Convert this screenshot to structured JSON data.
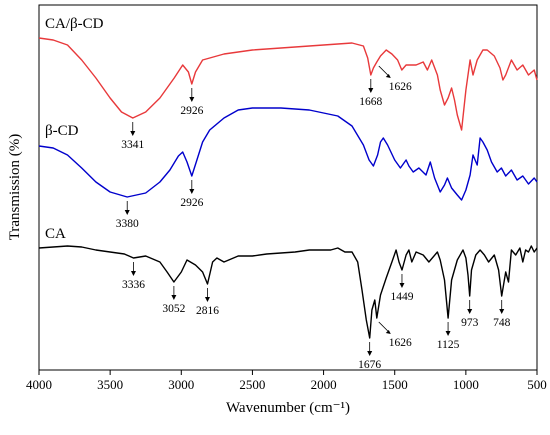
{
  "chart_data": {
    "type": "line",
    "title": "",
    "xlabel": "Wavenumber (cm⁻¹)",
    "ylabel": "Transmission (%)",
    "xlim": [
      4000,
      500
    ],
    "x_reversed": true,
    "y_ticks_shown": false,
    "xticks": [
      {
        "value": 4000,
        "label": "4000"
      },
      {
        "value": 3500,
        "label": "3500"
      },
      {
        "value": 3000,
        "label": "3000"
      },
      {
        "value": 2500,
        "label": "2500"
      },
      {
        "value": 2000,
        "label": "2000"
      },
      {
        "value": 1500,
        "label": "1500"
      },
      {
        "value": 1000,
        "label": "1000"
      },
      {
        "value": 500,
        "label": "500"
      }
    ],
    "series": [
      {
        "name": "CA/β-CD",
        "color": "#e8393b",
        "points": [
          [
            4000,
            18
          ],
          [
            3900,
            20
          ],
          [
            3800,
            25
          ],
          [
            3700,
            40
          ],
          [
            3600,
            58
          ],
          [
            3500,
            78
          ],
          [
            3420,
            92
          ],
          [
            3341,
            98
          ],
          [
            3250,
            92
          ],
          [
            3150,
            78
          ],
          [
            3050,
            58
          ],
          [
            2990,
            45
          ],
          [
            2950,
            52
          ],
          [
            2926,
            64
          ],
          [
            2900,
            52
          ],
          [
            2850,
            40
          ],
          [
            2700,
            34
          ],
          [
            2500,
            30
          ],
          [
            2300,
            28
          ],
          [
            2100,
            26
          ],
          [
            1900,
            24
          ],
          [
            1800,
            23
          ],
          [
            1720,
            26
          ],
          [
            1690,
            38
          ],
          [
            1668,
            55
          ],
          [
            1650,
            48
          ],
          [
            1626,
            42
          ],
          [
            1600,
            36
          ],
          [
            1560,
            30
          ],
          [
            1520,
            34
          ],
          [
            1480,
            40
          ],
          [
            1450,
            50
          ],
          [
            1420,
            45
          ],
          [
            1350,
            45
          ],
          [
            1300,
            42
          ],
          [
            1270,
            50
          ],
          [
            1240,
            40
          ],
          [
            1200,
            55
          ],
          [
            1180,
            70
          ],
          [
            1150,
            85
          ],
          [
            1125,
            78
          ],
          [
            1100,
            68
          ],
          [
            1080,
            80
          ],
          [
            1060,
            95
          ],
          [
            1030,
            110
          ],
          [
            1000,
            70
          ],
          [
            970,
            40
          ],
          [
            950,
            55
          ],
          [
            920,
            40
          ],
          [
            880,
            30
          ],
          [
            850,
            30
          ],
          [
            800,
            36
          ],
          [
            760,
            48
          ],
          [
            740,
            60
          ],
          [
            720,
            55
          ],
          [
            680,
            40
          ],
          [
            640,
            50
          ],
          [
            600,
            45
          ],
          [
            560,
            55
          ],
          [
            520,
            50
          ],
          [
            500,
            60
          ]
        ],
        "peaks": [
          {
            "x": 3341,
            "label": "3341"
          },
          {
            "x": 2926,
            "label": "2926"
          },
          {
            "x": 1668,
            "label": "1668"
          },
          {
            "x": 1626,
            "label": "1626"
          }
        ]
      },
      {
        "name": "β-CD",
        "color": "#0000cc",
        "points": [
          [
            4000,
            146
          ],
          [
            3900,
            148
          ],
          [
            3800,
            155
          ],
          [
            3700,
            168
          ],
          [
            3600,
            182
          ],
          [
            3500,
            192
          ],
          [
            3380,
            197
          ],
          [
            3250,
            193
          ],
          [
            3150,
            182
          ],
          [
            3080,
            170
          ],
          [
            3020,
            156
          ],
          [
            2990,
            152
          ],
          [
            2960,
            162
          ],
          [
            2926,
            176
          ],
          [
            2890,
            160
          ],
          [
            2850,
            142
          ],
          [
            2800,
            130
          ],
          [
            2700,
            118
          ],
          [
            2600,
            110
          ],
          [
            2500,
            108
          ],
          [
            2300,
            108
          ],
          [
            2100,
            110
          ],
          [
            1900,
            116
          ],
          [
            1800,
            126
          ],
          [
            1720,
            145
          ],
          [
            1680,
            160
          ],
          [
            1650,
            166
          ],
          [
            1620,
            155
          ],
          [
            1600,
            142
          ],
          [
            1580,
            138
          ],
          [
            1550,
            145
          ],
          [
            1500,
            160
          ],
          [
            1460,
            168
          ],
          [
            1420,
            160
          ],
          [
            1400,
            166
          ],
          [
            1370,
            172
          ],
          [
            1330,
            168
          ],
          [
            1280,
            175
          ],
          [
            1250,
            162
          ],
          [
            1220,
            178
          ],
          [
            1180,
            192
          ],
          [
            1150,
            185
          ],
          [
            1130,
            178
          ],
          [
            1100,
            188
          ],
          [
            1060,
            195
          ],
          [
            1030,
            200
          ],
          [
            1000,
            190
          ],
          [
            970,
            175
          ],
          [
            950,
            155
          ],
          [
            920,
            165
          ],
          [
            900,
            138
          ],
          [
            880,
            142
          ],
          [
            850,
            150
          ],
          [
            820,
            162
          ],
          [
            780,
            172
          ],
          [
            750,
            168
          ],
          [
            720,
            176
          ],
          [
            680,
            170
          ],
          [
            640,
            180
          ],
          [
            600,
            176
          ],
          [
            560,
            184
          ],
          [
            520,
            178
          ],
          [
            500,
            182
          ]
        ],
        "peaks": [
          {
            "x": 3380,
            "label": "3380"
          },
          {
            "x": 2926,
            "label": "2926"
          }
        ]
      },
      {
        "name": "CA",
        "color": "#000000",
        "points": [
          [
            4000,
            248
          ],
          [
            3900,
            247
          ],
          [
            3800,
            246
          ],
          [
            3700,
            247
          ],
          [
            3600,
            250
          ],
          [
            3500,
            252
          ],
          [
            3400,
            254
          ],
          [
            3336,
            258
          ],
          [
            3250,
            256
          ],
          [
            3150,
            262
          ],
          [
            3100,
            272
          ],
          [
            3052,
            282
          ],
          [
            3000,
            272
          ],
          [
            2960,
            260
          ],
          [
            2900,
            265
          ],
          [
            2850,
            272
          ],
          [
            2816,
            284
          ],
          [
            2780,
            262
          ],
          [
            2750,
            258
          ],
          [
            2700,
            262
          ],
          [
            2600,
            256
          ],
          [
            2500,
            256
          ],
          [
            2400,
            254
          ],
          [
            2300,
            253
          ],
          [
            2200,
            252
          ],
          [
            2100,
            250
          ],
          [
            2000,
            250
          ],
          [
            1950,
            250
          ],
          [
            1900,
            248
          ],
          [
            1850,
            252
          ],
          [
            1800,
            252
          ],
          [
            1760,
            262
          ],
          [
            1730,
            290
          ],
          [
            1700,
            320
          ],
          [
            1676,
            338
          ],
          [
            1660,
            310
          ],
          [
            1640,
            300
          ],
          [
            1626,
            318
          ],
          [
            1600,
            295
          ],
          [
            1560,
            278
          ],
          [
            1520,
            262
          ],
          [
            1490,
            250
          ],
          [
            1470,
            262
          ],
          [
            1449,
            270
          ],
          [
            1420,
            255
          ],
          [
            1400,
            250
          ],
          [
            1380,
            262
          ],
          [
            1350,
            252
          ],
          [
            1300,
            255
          ],
          [
            1260,
            262
          ],
          [
            1200,
            252
          ],
          [
            1180,
            260
          ],
          [
            1150,
            280
          ],
          [
            1125,
            318
          ],
          [
            1100,
            280
          ],
          [
            1060,
            260
          ],
          [
            1020,
            250
          ],
          [
            1000,
            258
          ],
          [
            985,
            275
          ],
          [
            973,
            296
          ],
          [
            960,
            270
          ],
          [
            930,
            255
          ],
          [
            900,
            250
          ],
          [
            870,
            255
          ],
          [
            840,
            262
          ],
          [
            800,
            255
          ],
          [
            770,
            270
          ],
          [
            748,
            296
          ],
          [
            720,
            272
          ],
          [
            700,
            282
          ],
          [
            680,
            250
          ],
          [
            650,
            255
          ],
          [
            620,
            248
          ],
          [
            600,
            262
          ],
          [
            580,
            250
          ],
          [
            560,
            252
          ],
          [
            540,
            246
          ],
          [
            520,
            252
          ],
          [
            500,
            248
          ]
        ],
        "peaks": [
          {
            "x": 3336,
            "label": "3336"
          },
          {
            "x": 3052,
            "label": "3052"
          },
          {
            "x": 2816,
            "label": "2816"
          },
          {
            "x": 1676,
            "label": "1676"
          },
          {
            "x": 1626,
            "label": "1626"
          },
          {
            "x": 1449,
            "label": "1449"
          },
          {
            "x": 1125,
            "label": "1125"
          },
          {
            "x": 973,
            "label": "973"
          },
          {
            "x": 748,
            "label": "748"
          }
        ]
      }
    ]
  }
}
